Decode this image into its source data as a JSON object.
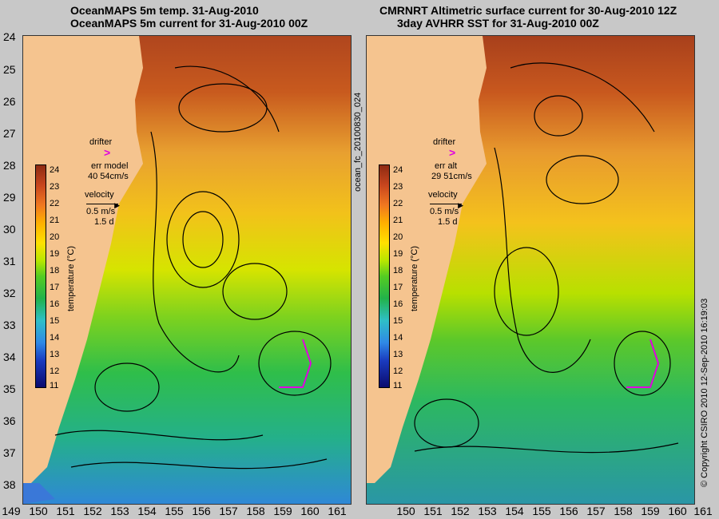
{
  "left_panel": {
    "title_line1": "OceanMAPS 5m temp. 31-Aug-2010",
    "title_line2": "OceanMAPS 5m current for 31-Aug-2010 00Z",
    "drifter_label": "drifter",
    "err_label": "err model",
    "err_value": "40 54cm/s",
    "velocity_label": "velocity",
    "velocity_scale": "0.5 m/s",
    "velocity_days": "1.5 d"
  },
  "right_panel": {
    "title_line1": "CMRNRT Altimetric surface current for 30-Aug-2010 12Z",
    "title_line2": "3day AVHRR SST for 31-Aug-2010 00Z",
    "drifter_label": "drifter",
    "err_label": "err alt",
    "err_value": "29 51cm/s",
    "velocity_label": "velocity",
    "velocity_scale": "0.5 m/s",
    "velocity_days": "1.5 d"
  },
  "colorbar": {
    "label": "temperature (°C)",
    "ticks": [
      "24",
      "23",
      "22",
      "21",
      "20",
      "19",
      "18",
      "17",
      "16",
      "15",
      "14",
      "13",
      "12",
      "11"
    ]
  },
  "latitude_ticks": [
    "24",
    "25",
    "26",
    "27",
    "28",
    "29",
    "30",
    "31",
    "32",
    "33",
    "34",
    "35",
    "36",
    "37",
    "38"
  ],
  "left_longitude_ticks": [
    "149",
    "150",
    "151",
    "152",
    "153",
    "154",
    "155",
    "156",
    "157",
    "158",
    "159",
    "160",
    "161"
  ],
  "right_longitude_ticks": [
    "150",
    "151",
    "152",
    "153",
    "154",
    "155",
    "156",
    "157",
    "158",
    "159",
    "160",
    "161"
  ],
  "side_label": "ocean_fc_20100830_024",
  "copyright": "© Copyright CSIRO 2010   12-Sep-2010 16:19:03",
  "colors": {
    "land": "#f5c48f",
    "drifter": "#e000e0",
    "contour": "#40d8d0"
  }
}
